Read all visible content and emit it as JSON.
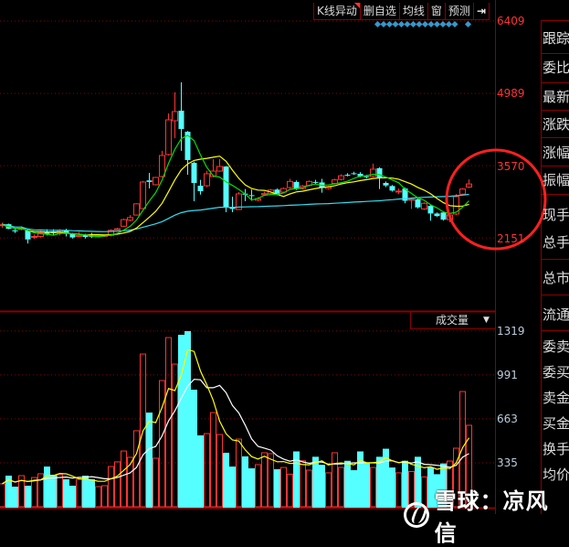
{
  "toolbar": {
    "items": [
      "K线异动",
      "删自选",
      "均线",
      "窗",
      "预测"
    ],
    "collapse_icon": "arrow-right-bar-icon"
  },
  "price_axis": {
    "labels": [
      "6409",
      "4989",
      "3570",
      "2151"
    ],
    "values": [
      6409,
      4989,
      3570,
      2151
    ]
  },
  "volume_axis": {
    "labels": [
      "1319",
      "991",
      "663",
      "335"
    ],
    "values": [
      1319,
      991,
      663,
      335
    ]
  },
  "volume_panel": {
    "indicator": "成交量",
    "dropdown_icon": "triangle-down-icon"
  },
  "right_panel": {
    "labels": [
      "跟踪",
      "委比",
      "最新",
      "涨跌",
      "涨幅",
      "振幅",
      "现手",
      "总手",
      "总市",
      "流通",
      "委卖",
      "委买",
      "卖金",
      "买金",
      "换手",
      "均价"
    ]
  },
  "watermark": "雪球：凉风信",
  "colors": {
    "up": "#ff3333",
    "down": "#55ffff",
    "ma_fast": "#00dd00",
    "ma_mid": "#ffff00",
    "ma_long": "#33ddee",
    "vol_ma_fast": "#ffff00",
    "vol_ma_slow": "#ffffff",
    "grid": "#8a0000",
    "highlight_circle": "#ff2020",
    "event_marker": "#3399cc"
  },
  "chart_data": {
    "type": "candlestick",
    "ylim": [
      2151,
      6409
    ],
    "candles_ohlc": [
      [
        2400,
        2410,
        2450,
        2350
      ],
      [
        2420,
        2330,
        2430,
        2320
      ],
      [
        2300,
        2280,
        2340,
        2250
      ],
      [
        2320,
        2340,
        2380,
        2300
      ],
      [
        2300,
        2120,
        2330,
        2040
      ],
      [
        2170,
        2180,
        2220,
        2130
      ],
      [
        2180,
        2250,
        2290,
        2160
      ],
      [
        2260,
        2230,
        2320,
        2200
      ],
      [
        2280,
        2240,
        2320,
        2210
      ],
      [
        2240,
        2290,
        2320,
        2200
      ],
      [
        2300,
        2230,
        2330,
        2180
      ],
      [
        2230,
        2160,
        2250,
        2140
      ],
      [
        2180,
        2200,
        2270,
        2160
      ],
      [
        2200,
        2170,
        2230,
        2140
      ],
      [
        2190,
        2180,
        2250,
        2150
      ],
      [
        2180,
        2190,
        2200,
        2160
      ],
      [
        2190,
        2200,
        2200,
        2170
      ],
      [
        2200,
        2300,
        2320,
        2180
      ],
      [
        2310,
        2330,
        2350,
        2300
      ],
      [
        2380,
        2510,
        2530,
        2370
      ],
      [
        2500,
        2550,
        2600,
        2480
      ],
      [
        2600,
        2820,
        2830,
        2590
      ],
      [
        2727,
        3248,
        3270,
        2720
      ],
      [
        3280,
        3250,
        3427,
        3122
      ],
      [
        3195,
        3338,
        3350,
        3180
      ],
      [
        3356,
        3769,
        3860,
        3340
      ],
      [
        3787,
        4469,
        4595,
        3770
      ],
      [
        4451,
        4631,
        5008,
        4110
      ],
      [
        4649,
        4290,
        5206,
        3860
      ],
      [
        4236,
        3680,
        4250,
        3392
      ],
      [
        3625,
        3230,
        3650,
        2870
      ],
      [
        3176,
        3068,
        3290,
        3000
      ],
      [
        3176,
        3410,
        3470,
        3150
      ],
      [
        3356,
        3463,
        3697,
        3340
      ],
      [
        3463,
        3553,
        3697,
        3450
      ],
      [
        3553,
        2763,
        3560,
        2655
      ],
      [
        2745,
        2720,
        2960,
        2655
      ],
      [
        2709,
        3015,
        3050,
        2700
      ],
      [
        3020,
        3000,
        3110,
        2870
      ],
      [
        2990,
        2980,
        3100,
        2880
      ],
      [
        2890,
        2920,
        2950,
        2870
      ],
      [
        3000,
        3020,
        3060,
        2980
      ],
      [
        3020,
        3090,
        3110,
        3000
      ],
      [
        3100,
        3020,
        3120,
        2990
      ],
      [
        3050,
        3120,
        3140,
        3030
      ],
      [
        3140,
        3260,
        3310,
        3120
      ],
      [
        3250,
        3110,
        3280,
        3090
      ],
      [
        3120,
        3170,
        3190,
        3100
      ],
      [
        3180,
        3260,
        3280,
        3160
      ],
      [
        3250,
        3240,
        3290,
        3200
      ],
      [
        3240,
        3130,
        3310,
        3040
      ],
      [
        3120,
        3150,
        3170,
        3100
      ],
      [
        3220,
        3290,
        3310,
        3200
      ],
      [
        3300,
        3370,
        3400,
        3280
      ],
      [
        3390,
        3380,
        3420,
        3360
      ],
      [
        3420,
        3410,
        3450,
        3390
      ],
      [
        3410,
        3360,
        3440,
        3340
      ],
      [
        3360,
        3350,
        3390,
        3320
      ],
      [
        3360,
        3500,
        3610,
        3340
      ],
      [
        3520,
        3340,
        3540,
        3110
      ],
      [
        3230,
        3180,
        3260,
        3150
      ],
      [
        3170,
        3080,
        3190,
        3060
      ],
      [
        3060,
        3070,
        3120,
        3010
      ],
      [
        3120,
        2880,
        3140,
        2830
      ],
      [
        2900,
        2910,
        2940,
        2720
      ],
      [
        2910,
        2750,
        2930,
        2730
      ],
      [
        2720,
        2830,
        2850,
        2700
      ],
      [
        2780,
        2630,
        2800,
        2490
      ],
      [
        2630,
        2580,
        2650,
        2560
      ],
      [
        2650,
        2510,
        2670,
        2490
      ],
      [
        2510,
        2600,
        2620,
        2460
      ],
      [
        2620,
        2960,
        3010,
        2600
      ],
      [
        3010,
        3110,
        3130,
        2990
      ],
      [
        3150,
        3210,
        3300,
        3130
      ]
    ],
    "volume": [
      178,
      239,
      157,
      239,
      164,
      225,
      253,
      307,
      246,
      246,
      212,
      164,
      212,
      239,
      212,
      157,
      164,
      307,
      342,
      423,
      376,
      574,
      1147,
      710,
      369,
      949,
      1270,
      1072,
      1291,
      1318,
      881,
      540,
      553,
      710,
      546,
      410,
      307,
      512,
      383,
      294,
      321,
      410,
      403,
      287,
      300,
      250,
      420,
      350,
      280,
      380,
      320,
      260,
      410,
      300,
      350,
      280,
      420,
      330,
      300,
      380,
      440,
      300,
      260,
      350,
      270,
      380,
      230,
      300,
      250,
      330,
      348,
      444,
      867,
      615
    ],
    "volume_ylim": [
      0,
      1319
    ],
    "grid": true
  }
}
